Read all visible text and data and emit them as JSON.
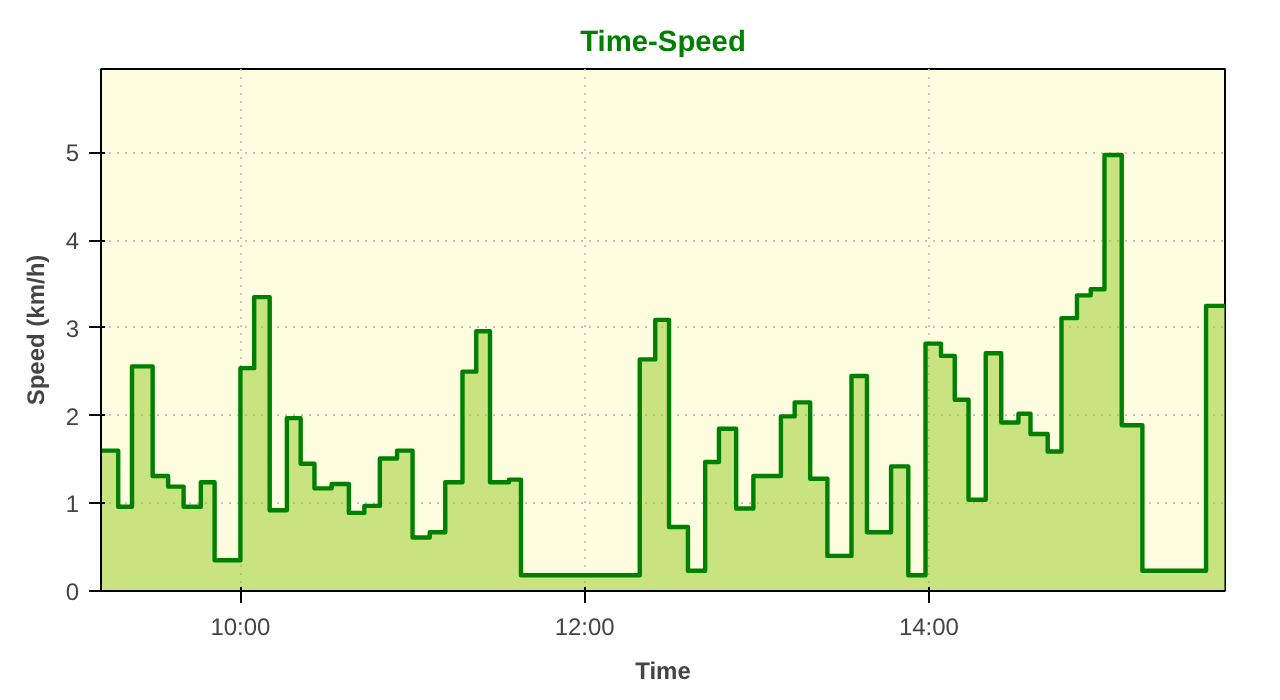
{
  "chart_data": {
    "type": "area",
    "title": "Time-Speed",
    "xlabel": "Time",
    "ylabel": "Speed (km/h)",
    "xlim": [
      9.19,
      15.72
    ],
    "ylim": [
      0,
      5.95
    ],
    "xticks": [
      {
        "value": 10,
        "label": "10:00"
      },
      {
        "value": 12,
        "label": "12:00"
      },
      {
        "value": 14,
        "label": "14:00"
      }
    ],
    "yticks": [
      0,
      1,
      2,
      3,
      4,
      5
    ],
    "grid": true,
    "series": [
      {
        "color": "#008000",
        "x": [
          9.19,
          9.29,
          9.29,
          9.37,
          9.37,
          9.49,
          9.49,
          9.58,
          9.58,
          9.67,
          9.67,
          9.77,
          9.77,
          9.85,
          9.85,
          10.0,
          10.0,
          10.08,
          10.08,
          10.17,
          10.17,
          10.27,
          10.27,
          10.35,
          10.35,
          10.43,
          10.43,
          10.53,
          10.53,
          10.63,
          10.63,
          10.72,
          10.72,
          10.81,
          10.81,
          10.91,
          10.91,
          11.0,
          11.0,
          11.1,
          11.1,
          11.19,
          11.19,
          11.29,
          11.29,
          11.37,
          11.37,
          11.45,
          11.45,
          11.56,
          11.56,
          11.63,
          11.63,
          12.32,
          12.32,
          12.41,
          12.41,
          12.49,
          12.49,
          12.6,
          12.6,
          12.7,
          12.7,
          12.78,
          12.78,
          12.88,
          12.88,
          12.98,
          12.98,
          13.14,
          13.14,
          13.22,
          13.22,
          13.31,
          13.31,
          13.41,
          13.41,
          13.55,
          13.55,
          13.64,
          13.64,
          13.78,
          13.78,
          13.88,
          13.88,
          13.98,
          13.98,
          14.07,
          14.07,
          14.15,
          14.15,
          14.23,
          14.23,
          14.33,
          14.33,
          14.42,
          14.42,
          14.52,
          14.52,
          14.59,
          14.59,
          14.69,
          14.69,
          14.77,
          14.77,
          14.86,
          14.86,
          14.94,
          14.94,
          15.02,
          15.02,
          15.12,
          15.12,
          15.24,
          15.24,
          15.61,
          15.61,
          15.72
        ],
        "values": [
          1.6,
          1.6,
          0.96,
          0.96,
          2.56,
          2.56,
          1.31,
          1.31,
          1.19,
          1.19,
          0.96,
          0.96,
          1.24,
          1.24,
          0.35,
          0.35,
          2.54,
          2.54,
          3.35,
          3.35,
          0.92,
          0.92,
          1.97,
          1.97,
          1.45,
          1.45,
          1.17,
          1.17,
          1.22,
          1.22,
          0.89,
          0.89,
          0.97,
          0.97,
          1.51,
          1.51,
          1.6,
          1.6,
          0.61,
          0.61,
          0.67,
          0.67,
          1.24,
          1.24,
          2.5,
          2.5,
          2.96,
          2.96,
          1.24,
          1.24,
          1.27,
          1.27,
          0.18,
          0.18,
          2.64,
          2.64,
          3.09,
          3.09,
          0.73,
          0.73,
          0.23,
          0.23,
          1.47,
          1.47,
          1.85,
          1.85,
          0.94,
          0.94,
          1.31,
          1.31,
          1.99,
          1.99,
          2.15,
          2.15,
          1.28,
          1.28,
          0.4,
          0.4,
          2.45,
          2.45,
          0.67,
          0.67,
          1.42,
          1.42,
          0.18,
          0.18,
          2.82,
          2.82,
          2.68,
          2.68,
          2.18,
          2.18,
          1.04,
          1.04,
          2.71,
          2.71,
          1.92,
          1.92,
          2.02,
          2.02,
          1.79,
          1.79,
          1.59,
          1.59,
          3.11,
          3.11,
          3.37,
          3.37,
          3.44,
          3.44,
          4.97,
          4.97,
          1.89,
          1.89,
          0.23,
          0.23,
          3.25,
          3.25
        ]
      }
    ]
  }
}
